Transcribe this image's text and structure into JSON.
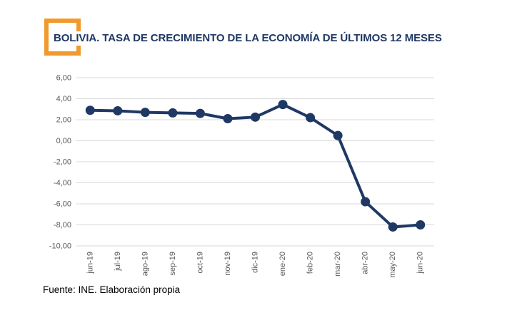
{
  "header": {
    "title": "BOLIVIA. TASA DE CRECIMIENTO DE LA ECONOMÍA DE ÚLTIMOS 12 MESES",
    "title_color": "#1F3864",
    "accent_color": "#F09A2E"
  },
  "footer": {
    "source": "Fuente: INE. Elaboración propia"
  },
  "chart_data": {
    "type": "line",
    "title": "",
    "xlabel": "",
    "ylabel": "",
    "categories": [
      "jun-19",
      "jul-19",
      "ago-19",
      "sep-19",
      "oct-19",
      "nov-19",
      "dic-19",
      "ene-20",
      "feb-20",
      "mar-20",
      "abr-20",
      "may-20",
      "jun-20"
    ],
    "values": [
      2.9,
      2.85,
      2.7,
      2.65,
      2.6,
      2.1,
      2.25,
      3.45,
      2.2,
      0.5,
      -5.8,
      -8.2,
      -8.0
    ],
    "ylim": [
      -10,
      6
    ],
    "ytick_step": 2,
    "ytick_labels": [
      "6,00",
      "4,00",
      "2,00",
      "0,00",
      "-2,00",
      "-4,00",
      "-6,00",
      "-8,00",
      "-10,00"
    ],
    "grid": true,
    "legend": false,
    "line_color": "#1F3864",
    "marker": "circle",
    "marker_radius": 6.5,
    "line_width": 4,
    "gridline_color": "#D9D9D9",
    "tick_label_color": "#595959"
  }
}
